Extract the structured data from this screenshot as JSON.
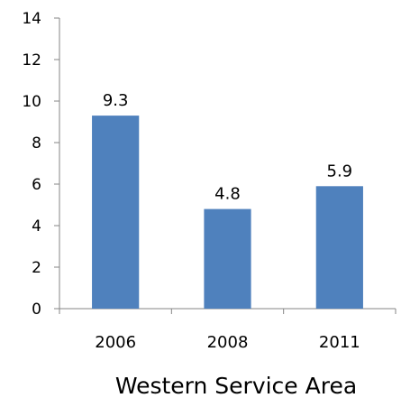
{
  "chart_data": {
    "type": "bar",
    "categories": [
      "2006",
      "2008",
      "2011"
    ],
    "values": [
      9.3,
      4.8,
      5.9
    ],
    "data_labels": [
      "9.3",
      "4.8",
      "5.9"
    ],
    "title": "",
    "xlabel": "Western Service Area",
    "ylabel": "",
    "ylim": [
      0,
      14
    ],
    "yticks": [
      0,
      2,
      4,
      6,
      8,
      10,
      12,
      14
    ],
    "ytick_labels": [
      "0",
      "2",
      "4",
      "6",
      "8",
      "10",
      "12",
      "14"
    ],
    "grid": false,
    "legend": "none",
    "bar_color": "#4f81bd",
    "axis_color": "#868686"
  }
}
